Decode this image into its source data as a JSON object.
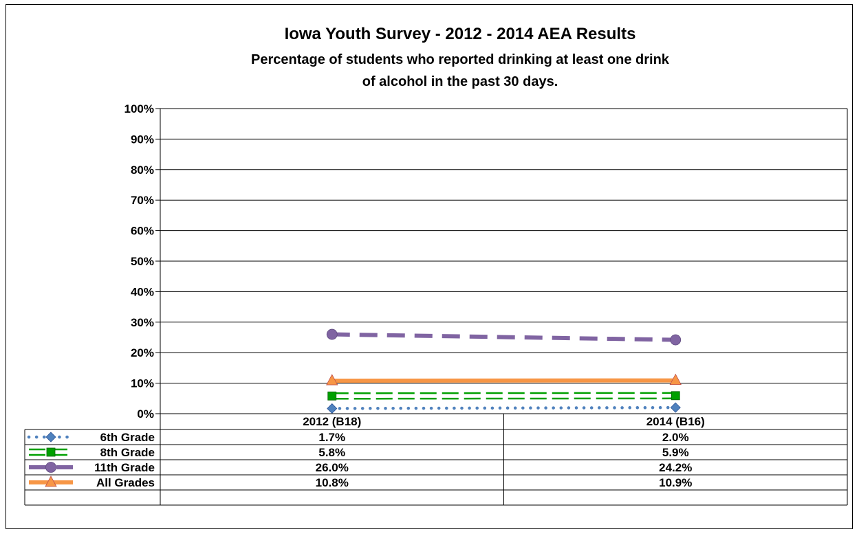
{
  "chart_data": {
    "type": "line",
    "title": "Iowa Youth Survey - 2012 - 2014 AEA Results",
    "subtitle_lines": [
      "Percentage of students who reported drinking at least one drink",
      "of alcohol  in the past 30 days."
    ],
    "categories": [
      "2012 (B18)",
      "2014 (B16)"
    ],
    "ylim": [
      0,
      100
    ],
    "y_ticks": [
      "0%",
      "10%",
      "20%",
      "30%",
      "40%",
      "50%",
      "60%",
      "70%",
      "80%",
      "90%",
      "100%"
    ],
    "grid": true,
    "legend_placement": "data-table",
    "series": [
      {
        "name": "6th Grade",
        "values": [
          1.7,
          2.0
        ],
        "labels": [
          "1.7%",
          "2.0%"
        ],
        "color": "#4F81BD",
        "marker": "diamond",
        "line_style": "dotted"
      },
      {
        "name": "8th Grade",
        "values": [
          5.8,
          5.9
        ],
        "labels": [
          "5.8%",
          "5.9%"
        ],
        "color": "#00A000",
        "marker": "square",
        "line_style": "double"
      },
      {
        "name": "11th Grade",
        "values": [
          26.0,
          24.2
        ],
        "labels": [
          "26.0%",
          "24.2%"
        ],
        "color": "#8064A2",
        "marker": "circle",
        "line_style": "dashed"
      },
      {
        "name": "All Grades",
        "values": [
          10.8,
          10.9
        ],
        "labels": [
          "10.8%",
          "10.9%"
        ],
        "color": "#F79646",
        "marker": "triangle",
        "line_style": "solid"
      }
    ]
  }
}
